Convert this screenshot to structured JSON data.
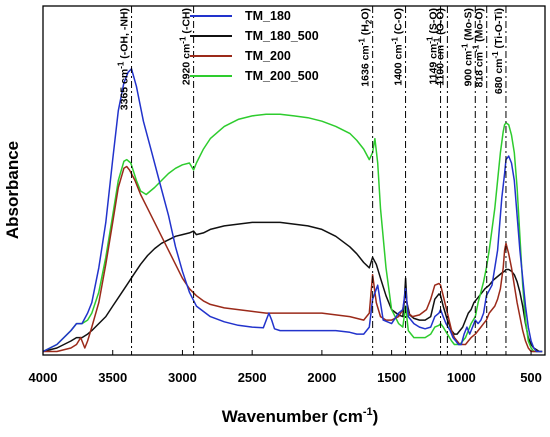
{
  "chart_data": {
    "type": "line",
    "xlabel": "Wavenumber (cm",
    "xlabel_sup": "-1",
    "xlabel_end": ")",
    "ylabel": "Absorbance",
    "xlim": [
      4000,
      400
    ],
    "ylim": [
      0,
      1
    ],
    "x_reversed": true,
    "y_ticks_shown": false,
    "xticks": [
      "4000",
      "3500",
      "3000",
      "2500",
      "2000",
      "1500",
      "1000",
      "500"
    ],
    "xtick_values": [
      4000,
      3500,
      3000,
      2500,
      2000,
      1500,
      1000,
      500
    ],
    "legend_position": "top-center",
    "series": [
      {
        "name": "TM_180",
        "color": "#2233cc",
        "x": [
          4000,
          3900,
          3800,
          3760,
          3720,
          3680,
          3650,
          3600,
          3550,
          3500,
          3460,
          3420,
          3390,
          3365,
          3330,
          3280,
          3220,
          3160,
          3100,
          3050,
          3000,
          2950,
          2900,
          2800,
          2700,
          2600,
          2500,
          2420,
          2380,
          2360,
          2340,
          2300,
          2200,
          2100,
          2000,
          1900,
          1800,
          1750,
          1700,
          1660,
          1636,
          1600,
          1560,
          1500,
          1450,
          1420,
          1400,
          1380,
          1340,
          1300,
          1260,
          1220,
          1190,
          1160,
          1149,
          1130,
          1110,
          1080,
          1060,
          1040,
          1020,
          1000,
          980,
          960,
          940,
          920,
          900,
          880,
          860,
          840,
          820,
          780,
          740,
          710,
          690,
          680,
          660,
          640,
          620,
          600,
          580,
          560,
          540,
          520,
          500,
          480,
          460,
          440,
          420
        ],
        "y": [
          0.01,
          0.03,
          0.07,
          0.09,
          0.09,
          0.12,
          0.15,
          0.25,
          0.38,
          0.56,
          0.7,
          0.78,
          0.81,
          0.82,
          0.77,
          0.67,
          0.58,
          0.49,
          0.4,
          0.31,
          0.24,
          0.18,
          0.14,
          0.11,
          0.095,
          0.085,
          0.08,
          0.078,
          0.12,
          0.1,
          0.075,
          0.07,
          0.07,
          0.07,
          0.07,
          0.07,
          0.065,
          0.06,
          0.06,
          0.08,
          0.16,
          0.2,
          0.1,
          0.09,
          0.12,
          0.13,
          0.19,
          0.11,
          0.09,
          0.08,
          0.075,
          0.08,
          0.11,
          0.12,
          0.13,
          0.11,
          0.09,
          0.07,
          0.05,
          0.04,
          0.03,
          0.03,
          0.06,
          0.08,
          0.06,
          0.08,
          0.1,
          0.09,
          0.1,
          0.12,
          0.17,
          0.2,
          0.3,
          0.45,
          0.52,
          0.56,
          0.57,
          0.55,
          0.5,
          0.4,
          0.3,
          0.22,
          0.14,
          0.08,
          0.04,
          0.02,
          0.01,
          0.01,
          0.01
        ]
      },
      {
        "name": "TM_180_500",
        "color": "#111111",
        "x": [
          4000,
          3900,
          3800,
          3760,
          3720,
          3680,
          3650,
          3600,
          3550,
          3500,
          3450,
          3400,
          3350,
          3300,
          3250,
          3200,
          3150,
          3100,
          3050,
          3000,
          2950,
          2920,
          2900,
          2850,
          2800,
          2700,
          2600,
          2500,
          2400,
          2300,
          2200,
          2100,
          2000,
          1900,
          1800,
          1750,
          1700,
          1660,
          1636,
          1610,
          1580,
          1540,
          1500,
          1450,
          1420,
          1410,
          1400,
          1390,
          1370,
          1340,
          1300,
          1260,
          1220,
          1190,
          1160,
          1149,
          1130,
          1100,
          1070,
          1050,
          1030,
          1010,
          990,
          970,
          950,
          930,
          910,
          890,
          870,
          850,
          830,
          800,
          770,
          740,
          710,
          690,
          680,
          660,
          640,
          620,
          600,
          580,
          560,
          540,
          520,
          500,
          480,
          460,
          440,
          420
        ],
        "y": [
          0.01,
          0.02,
          0.04,
          0.05,
          0.05,
          0.06,
          0.07,
          0.09,
          0.11,
          0.14,
          0.17,
          0.2,
          0.23,
          0.26,
          0.285,
          0.305,
          0.32,
          0.33,
          0.34,
          0.345,
          0.35,
          0.355,
          0.345,
          0.35,
          0.36,
          0.37,
          0.375,
          0.38,
          0.38,
          0.38,
          0.375,
          0.37,
          0.36,
          0.34,
          0.31,
          0.29,
          0.265,
          0.25,
          0.28,
          0.26,
          0.22,
          0.17,
          0.13,
          0.115,
          0.11,
          0.15,
          0.22,
          0.15,
          0.115,
          0.105,
          0.1,
          0.1,
          0.11,
          0.16,
          0.175,
          0.17,
          0.14,
          0.1,
          0.07,
          0.06,
          0.06,
          0.07,
          0.08,
          0.1,
          0.12,
          0.13,
          0.15,
          0.16,
          0.17,
          0.18,
          0.19,
          0.2,
          0.215,
          0.225,
          0.235,
          0.24,
          0.245,
          0.245,
          0.24,
          0.23,
          0.21,
          0.18,
          0.14,
          0.09,
          0.05,
          0.03,
          0.02,
          0.015,
          0.01,
          0.01
        ]
      },
      {
        "name": "TM_200",
        "color": "#9b2a1a",
        "x": [
          4000,
          3900,
          3800,
          3760,
          3730,
          3700,
          3680,
          3650,
          3600,
          3550,
          3500,
          3460,
          3420,
          3400,
          3380,
          3340,
          3300,
          3250,
          3200,
          3150,
          3100,
          3050,
          3000,
          2950,
          2900,
          2850,
          2800,
          2700,
          2600,
          2500,
          2400,
          2300,
          2200,
          2100,
          2000,
          1900,
          1800,
          1750,
          1700,
          1660,
          1636,
          1610,
          1580,
          1540,
          1500,
          1450,
          1420,
          1400,
          1380,
          1350,
          1300,
          1250,
          1220,
          1190,
          1160,
          1149,
          1130,
          1100,
          1070,
          1050,
          1030,
          1010,
          990,
          970,
          950,
          930,
          900,
          880,
          860,
          840,
          820,
          800,
          780,
          760,
          740,
          720,
          700,
          690,
          680,
          660,
          640,
          620,
          600,
          580,
          560,
          540,
          520,
          500,
          480,
          460,
          440,
          420
        ],
        "y": [
          0.01,
          0.01,
          0.02,
          0.03,
          0.05,
          0.02,
          0.04,
          0.08,
          0.15,
          0.26,
          0.38,
          0.48,
          0.535,
          0.54,
          0.53,
          0.5,
          0.46,
          0.42,
          0.38,
          0.34,
          0.3,
          0.26,
          0.22,
          0.19,
          0.17,
          0.155,
          0.145,
          0.135,
          0.13,
          0.125,
          0.12,
          0.12,
          0.12,
          0.12,
          0.12,
          0.115,
          0.11,
          0.105,
          0.1,
          0.12,
          0.23,
          0.15,
          0.11,
          0.1,
          0.1,
          0.11,
          0.13,
          0.18,
          0.12,
          0.11,
          0.115,
          0.13,
          0.16,
          0.2,
          0.205,
          0.2,
          0.17,
          0.12,
          0.07,
          0.05,
          0.04,
          0.03,
          0.03,
          0.03,
          0.04,
          0.05,
          0.06,
          0.07,
          0.08,
          0.09,
          0.1,
          0.12,
          0.13,
          0.14,
          0.16,
          0.19,
          0.25,
          0.3,
          0.32,
          0.29,
          0.25,
          0.2,
          0.15,
          0.11,
          0.07,
          0.04,
          0.02,
          0.01,
          0.01,
          0.01,
          0.01,
          0.01
        ]
      },
      {
        "name": "TM_200_500",
        "color": "#2ecc2e",
        "x": [
          4000,
          3900,
          3800,
          3760,
          3720,
          3680,
          3650,
          3600,
          3550,
          3500,
          3460,
          3420,
          3400,
          3370,
          3330,
          3300,
          3260,
          3230,
          3200,
          3150,
          3100,
          3050,
          3000,
          2950,
          2920,
          2900,
          2850,
          2800,
          2700,
          2600,
          2500,
          2400,
          2300,
          2200,
          2100,
          2000,
          1900,
          1800,
          1750,
          1700,
          1660,
          1636,
          1620,
          1600,
          1580,
          1540,
          1500,
          1450,
          1420,
          1400,
          1380,
          1340,
          1300,
          1260,
          1220,
          1190,
          1160,
          1149,
          1130,
          1100,
          1070,
          1050,
          1030,
          1010,
          990,
          970,
          950,
          930,
          900,
          880,
          860,
          840,
          820,
          800,
          780,
          760,
          740,
          720,
          700,
          690,
          680,
          660,
          640,
          620,
          600,
          580,
          560,
          540,
          520,
          500,
          480,
          460,
          440,
          420
        ],
        "y": [
          0.01,
          0.03,
          0.07,
          0.09,
          0.09,
          0.1,
          0.12,
          0.18,
          0.28,
          0.4,
          0.5,
          0.555,
          0.56,
          0.55,
          0.5,
          0.47,
          0.46,
          0.47,
          0.48,
          0.5,
          0.52,
          0.535,
          0.545,
          0.55,
          0.53,
          0.55,
          0.59,
          0.62,
          0.655,
          0.675,
          0.685,
          0.69,
          0.69,
          0.685,
          0.68,
          0.67,
          0.655,
          0.635,
          0.615,
          0.59,
          0.56,
          0.58,
          0.62,
          0.55,
          0.42,
          0.25,
          0.13,
          0.09,
          0.08,
          0.14,
          0.07,
          0.05,
          0.05,
          0.05,
          0.06,
          0.08,
          0.085,
          0.09,
          0.08,
          0.06,
          0.04,
          0.03,
          0.03,
          0.03,
          0.04,
          0.05,
          0.07,
          0.09,
          0.11,
          0.15,
          0.18,
          0.21,
          0.25,
          0.3,
          0.36,
          0.42,
          0.5,
          0.58,
          0.64,
          0.66,
          0.665,
          0.66,
          0.63,
          0.58,
          0.48,
          0.34,
          0.2,
          0.1,
          0.04,
          0.02,
          0.01,
          0.01,
          0.01,
          0.01
        ]
      }
    ],
    "annotations": [
      {
        "x": 3365,
        "label": "3365 cm",
        "sup": "-1",
        "rest": " (-OH, -NH)"
      },
      {
        "x": 2920,
        "label": "2920 cm",
        "sup": "-1",
        "rest": " (-CH)"
      },
      {
        "x": 1636,
        "label": "1636 cm",
        "sup": "-1",
        "rest": " (H",
        "sub": "2",
        "rest2": "O)"
      },
      {
        "x": 1400,
        "label": "1400 cm",
        "sup": "-1",
        "rest": " (C-O)"
      },
      {
        "x": 1149,
        "label": "1149 cm",
        "sup": "-1",
        "rest": " (S-O)"
      },
      {
        "x": 1100,
        "label": "1100 cm",
        "sup": "-1",
        "rest": " (O-O)"
      },
      {
        "x": 900,
        "label": "900 cm",
        "sup": "-1",
        "rest": " (Mo-S)"
      },
      {
        "x": 818,
        "label": "818 cm",
        "sup": "-1",
        "rest": " (Mo-O)"
      },
      {
        "x": 680,
        "label": "680 cm",
        "sup": "-1",
        "rest": " (Ti-O-Ti)"
      }
    ]
  }
}
